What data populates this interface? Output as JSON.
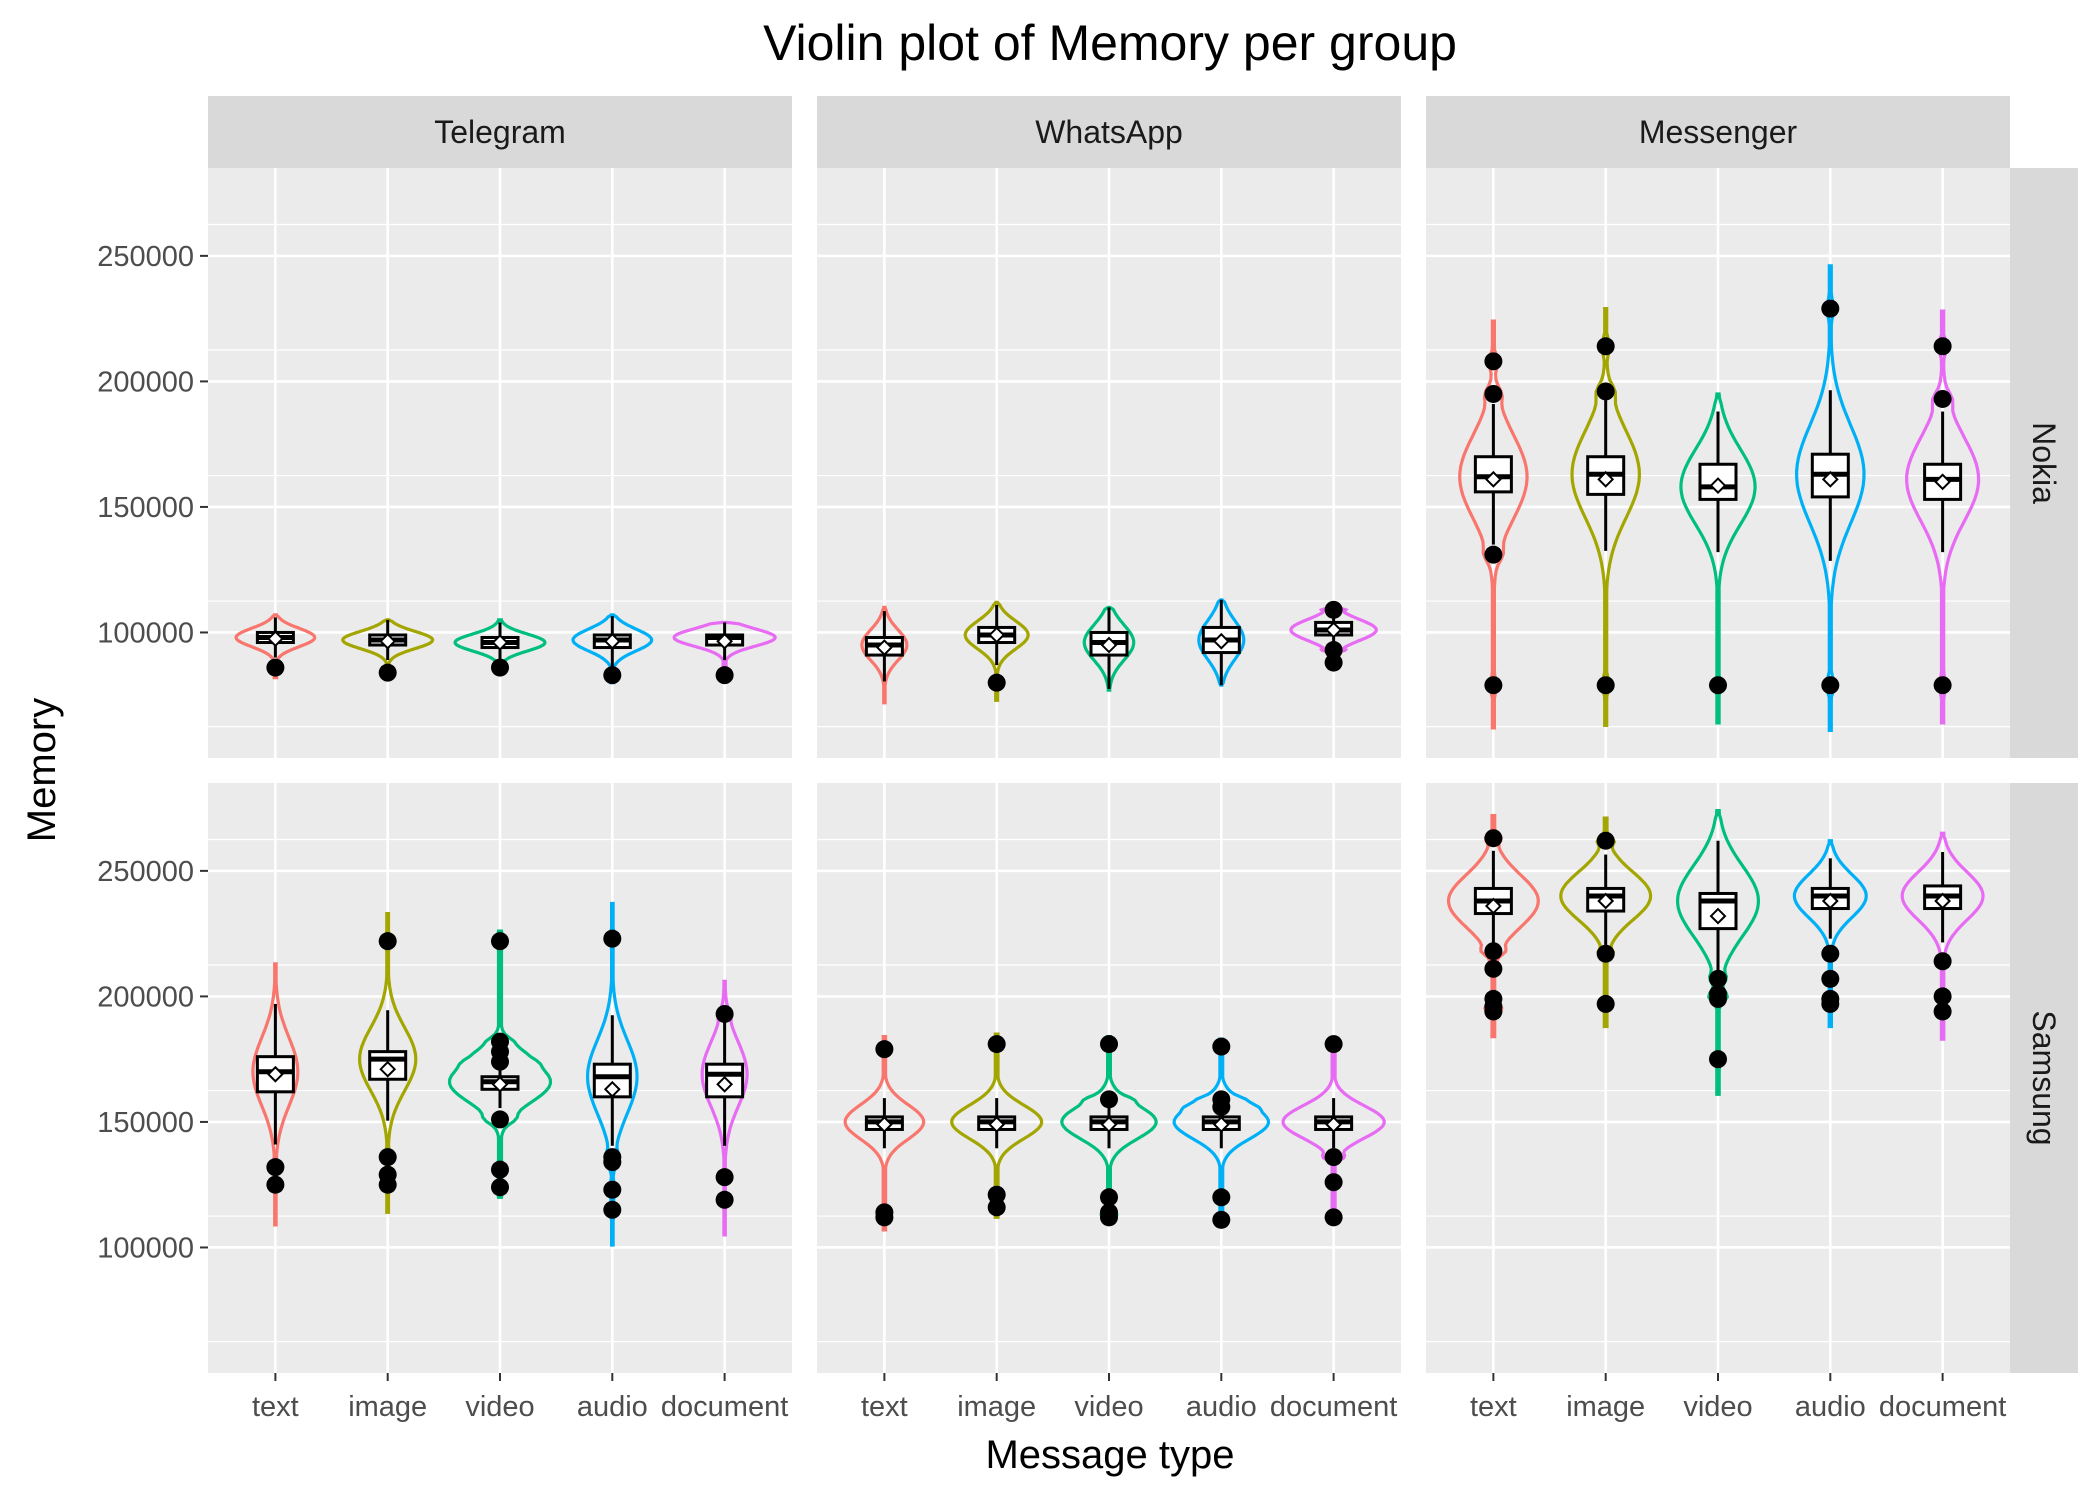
{
  "chart_data": {
    "type": "violin",
    "title": "Violin plot of Memory per group",
    "xlabel": "Message type",
    "ylabel": "Memory",
    "categories": [
      "text",
      "image",
      "video",
      "audio",
      "document"
    ],
    "column_facets": [
      "Telegram",
      "WhatsApp",
      "Messenger"
    ],
    "row_facets": [
      "Nokia",
      "Samsung"
    ],
    "y_ticks": [
      100000,
      150000,
      200000,
      250000
    ],
    "ylim": [
      50000,
      285000
    ],
    "grid": true,
    "legend": "none",
    "colors": {
      "text": "#F8766D",
      "image": "#A3A500",
      "video": "#00BF7D",
      "audio": "#00B0F6",
      "document": "#E76BF3",
      "panel_bg": "#EBEBEB",
      "strip_bg": "#D9D9D9",
      "grid": "#FFFFFF"
    },
    "panels": [
      {
        "row": "Nokia",
        "col": "Telegram",
        "groups": [
          {
            "category": "text",
            "min": 82000,
            "max": 107000,
            "median": 98000,
            "q1": 96000,
            "q3": 100000,
            "mean": 97500,
            "width": 0.35,
            "outliers": [
              86000
            ]
          },
          {
            "category": "image",
            "min": 84000,
            "max": 105000,
            "median": 97000,
            "q1": 95000,
            "q3": 99000,
            "mean": 96500,
            "width": 0.4,
            "outliers": [
              84000
            ]
          },
          {
            "category": "video",
            "min": 85000,
            "max": 105000,
            "median": 96000,
            "q1": 94000,
            "q3": 98000,
            "mean": 96000,
            "width": 0.4,
            "outliers": [
              86000
            ]
          },
          {
            "category": "audio",
            "min": 80000,
            "max": 107000,
            "median": 97000,
            "q1": 94000,
            "q3": 99000,
            "mean": 96500,
            "width": 0.35,
            "outliers": [
              83000
            ]
          },
          {
            "category": "document",
            "min": 83000,
            "max": 104000,
            "median": 98000,
            "q1": 95000,
            "q3": 99000,
            "mean": 96500,
            "width": 0.45,
            "outliers": [
              83000
            ]
          }
        ]
      },
      {
        "row": "Nokia",
        "col": "WhatsApp",
        "groups": [
          {
            "category": "text",
            "min": 72000,
            "max": 110000,
            "median": 95000,
            "q1": 91000,
            "q3": 98000,
            "mean": 94000,
            "width": 0.2,
            "outliers": []
          },
          {
            "category": "image",
            "min": 73000,
            "max": 112000,
            "median": 99000,
            "q1": 96000,
            "q3": 102000,
            "mean": 99000,
            "width": 0.28,
            "outliers": [
              80000
            ]
          },
          {
            "category": "video",
            "min": 77000,
            "max": 110000,
            "median": 96000,
            "q1": 91000,
            "q3": 100000,
            "mean": 95000,
            "width": 0.22,
            "outliers": []
          },
          {
            "category": "audio",
            "min": 79000,
            "max": 113000,
            "median": 97000,
            "q1": 92000,
            "q3": 102000,
            "mean": 96500,
            "width": 0.2,
            "outliers": []
          },
          {
            "category": "document",
            "min": 86000,
            "max": 110000,
            "median": 101000,
            "q1": 99000,
            "q3": 104000,
            "mean": 101000,
            "width": 0.38,
            "outliers": [
              109000,
              93000,
              88000
            ]
          }
        ]
      },
      {
        "row": "Nokia",
        "col": "Messenger",
        "groups": [
          {
            "category": "text",
            "min": 62000,
            "max": 224000,
            "median": 162000,
            "q1": 156000,
            "q3": 170000,
            "mean": 161000,
            "width": 0.3,
            "outliers": [
              208000,
              195000,
              131000,
              79000
            ]
          },
          {
            "category": "image",
            "min": 63000,
            "max": 229000,
            "median": 163000,
            "q1": 155000,
            "q3": 170000,
            "mean": 161000,
            "width": 0.3,
            "outliers": [
              214000,
              196000,
              79000
            ]
          },
          {
            "category": "video",
            "min": 64000,
            "max": 195000,
            "median": 158000,
            "q1": 153000,
            "q3": 167000,
            "mean": 158500,
            "width": 0.33,
            "outliers": [
              79000
            ]
          },
          {
            "category": "audio",
            "min": 61000,
            "max": 246000,
            "median": 163000,
            "q1": 154000,
            "q3": 171000,
            "mean": 161000,
            "width": 0.3,
            "outliers": [
              229000,
              79000
            ]
          },
          {
            "category": "document",
            "min": 64000,
            "max": 228000,
            "median": 161000,
            "q1": 153000,
            "q3": 167000,
            "mean": 160000,
            "width": 0.32,
            "outliers": [
              214000,
              193000,
              79000
            ]
          }
        ]
      },
      {
        "row": "Samsung",
        "col": "Telegram",
        "groups": [
          {
            "category": "text",
            "min": 109000,
            "max": 213000,
            "median": 170000,
            "q1": 162000,
            "q3": 176000,
            "mean": 169000,
            "width": 0.2,
            "outliers": [
              132000,
              125000
            ]
          },
          {
            "category": "image",
            "min": 114000,
            "max": 233000,
            "median": 175000,
            "q1": 167000,
            "q3": 178000,
            "mean": 171000,
            "width": 0.25,
            "outliers": [
              222000,
              136000,
              129000,
              125000
            ]
          },
          {
            "category": "video",
            "min": 120000,
            "max": 226000,
            "median": 166000,
            "q1": 163000,
            "q3": 168000,
            "mean": 165000,
            "width": 0.45,
            "outliers": [
              222000,
              182000,
              178000,
              174000,
              151000,
              131000,
              124000
            ]
          },
          {
            "category": "audio",
            "min": 101000,
            "max": 237000,
            "median": 168000,
            "q1": 160000,
            "q3": 173000,
            "mean": 163000,
            "width": 0.22,
            "outliers": [
              223000,
              136000,
              134000,
              123000,
              115000
            ]
          },
          {
            "category": "document",
            "min": 105000,
            "max": 206000,
            "median": 169000,
            "q1": 160000,
            "q3": 173000,
            "mean": 165000,
            "width": 0.2,
            "outliers": [
              193000,
              128000,
              119000
            ]
          }
        ]
      },
      {
        "row": "Samsung",
        "col": "WhatsApp",
        "groups": [
          {
            "category": "text",
            "min": 107000,
            "max": 184000,
            "median": 150000,
            "q1": 147000,
            "q3": 152000,
            "mean": 149000,
            "width": 0.35,
            "outliers": [
              179000,
              114000,
              112000
            ]
          },
          {
            "category": "image",
            "min": 112000,
            "max": 185000,
            "median": 150000,
            "q1": 147000,
            "q3": 152000,
            "mean": 149000,
            "width": 0.4,
            "outliers": [
              181000,
              121000,
              116000
            ]
          },
          {
            "category": "video",
            "min": 110000,
            "max": 184000,
            "median": 150000,
            "q1": 147000,
            "q3": 152000,
            "mean": 149000,
            "width": 0.42,
            "outliers": [
              181000,
              159000,
              120000,
              114000,
              112000
            ]
          },
          {
            "category": "audio",
            "min": 110000,
            "max": 183000,
            "median": 150000,
            "q1": 147000,
            "q3": 152000,
            "mean": 149000,
            "width": 0.42,
            "outliers": [
              180000,
              159000,
              156000,
              120000,
              111000
            ]
          },
          {
            "category": "document",
            "min": 112000,
            "max": 181000,
            "median": 150000,
            "q1": 147000,
            "q3": 152000,
            "mean": 149000,
            "width": 0.45,
            "outliers": [
              181000,
              136000,
              126000,
              112000
            ]
          }
        ]
      },
      {
        "row": "Samsung",
        "col": "Messenger",
        "groups": [
          {
            "category": "text",
            "min": 184000,
            "max": 272000,
            "median": 238000,
            "q1": 233000,
            "q3": 243000,
            "mean": 236000,
            "width": 0.4,
            "outliers": [
              263000,
              218000,
              211000,
              199000,
              196000,
              194000
            ]
          },
          {
            "category": "image",
            "min": 188000,
            "max": 271000,
            "median": 240000,
            "q1": 234000,
            "q3": 243000,
            "mean": 238000,
            "width": 0.4,
            "outliers": [
              262000,
              217000,
              197000
            ]
          },
          {
            "category": "video",
            "min": 161000,
            "max": 274000,
            "median": 238000,
            "q1": 227000,
            "q3": 241000,
            "mean": 232000,
            "width": 0.36,
            "outliers": [
              207000,
              201000,
              199000,
              175000
            ]
          },
          {
            "category": "audio",
            "min": 188000,
            "max": 262000,
            "median": 240000,
            "q1": 235000,
            "q3": 243000,
            "mean": 238000,
            "width": 0.32,
            "outliers": [
              217000,
              207000,
              199000,
              197000
            ]
          },
          {
            "category": "document",
            "min": 183000,
            "max": 265000,
            "median": 240000,
            "q1": 235000,
            "q3": 244000,
            "mean": 238000,
            "width": 0.36,
            "outliers": [
              214000,
              200000,
              194000
            ]
          }
        ]
      }
    ]
  }
}
